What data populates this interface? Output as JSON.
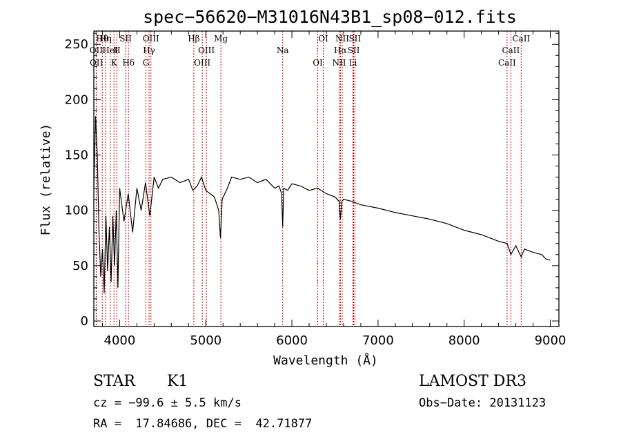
{
  "chart_data": {
    "type": "line",
    "title": "spec−56620−M31016N43B1_sp08−012.fits",
    "xlabel": "Wavelength (Å)",
    "ylabel": "Flux (relative)",
    "xlim": [
      3700,
      9100
    ],
    "ylim": [
      -5,
      262
    ],
    "x_ticks": [
      4000,
      5000,
      6000,
      7000,
      8000,
      9000
    ],
    "y_ticks": [
      0,
      50,
      100,
      150,
      200,
      250
    ],
    "grid": false,
    "series": [
      {
        "name": "spectrum",
        "x": [
          3700,
          3720,
          3740,
          3760,
          3780,
          3800,
          3820,
          3840,
          3860,
          3880,
          3900,
          3920,
          3940,
          3960,
          3980,
          4000,
          4050,
          4100,
          4150,
          4200,
          4250,
          4300,
          4350,
          4400,
          4450,
          4500,
          4600,
          4700,
          4800,
          4850,
          4900,
          4950,
          5000,
          5050,
          5100,
          5150,
          5170,
          5190,
          5250,
          5300,
          5400,
          5500,
          5600,
          5700,
          5800,
          5850,
          5880,
          5893,
          5905,
          5950,
          6000,
          6100,
          6200,
          6300,
          6400,
          6500,
          6550,
          6563,
          6580,
          6600,
          6700,
          6800,
          7000,
          7200,
          7400,
          7600,
          7800,
          8000,
          8200,
          8400,
          8500,
          8542,
          8600,
          8662,
          8700,
          8800,
          8900,
          8950,
          9000
        ],
        "y": [
          120,
          185,
          150,
          80,
          40,
          65,
          25,
          95,
          45,
          85,
          35,
          95,
          50,
          100,
          30,
          120,
          90,
          115,
          80,
          120,
          100,
          125,
          95,
          130,
          120,
          128,
          130,
          125,
          128,
          118,
          122,
          130,
          118,
          115,
          112,
          100,
          75,
          110,
          120,
          130,
          128,
          130,
          125,
          128,
          120,
          122,
          115,
          85,
          120,
          118,
          124,
          122,
          118,
          120,
          115,
          112,
          108,
          92,
          108,
          110,
          108,
          105,
          102,
          98,
          95,
          92,
          88,
          82,
          78,
          72,
          70,
          60,
          68,
          58,
          65,
          62,
          60,
          56,
          55
        ]
      }
    ],
    "spectral_lines": [
      {
        "label": "Hθ",
        "x": 3798
      },
      {
        "label": "OII",
        "x": 3727
      },
      {
        "label": "OII",
        "x": 3729
      },
      {
        "label": "Hη",
        "x": 3835
      },
      {
        "label": "HeI",
        "x": 3889
      },
      {
        "label": "K",
        "x": 3934
      },
      {
        "label": "SII",
        "x": 4069
      },
      {
        "label": "H",
        "x": 3968
      },
      {
        "label": "Hδ",
        "x": 4102
      },
      {
        "label": "OIII",
        "x": 4363
      },
      {
        "label": "Hγ",
        "x": 4341
      },
      {
        "label": "G",
        "x": 4304
      },
      {
        "label": "Hβ",
        "x": 4861
      },
      {
        "label": "OIII",
        "x": 5007
      },
      {
        "label": "OIII",
        "x": 4959
      },
      {
        "label": "Mg",
        "x": 5175
      },
      {
        "label": "Na",
        "x": 5893
      },
      {
        "label": "OI",
        "x": 6300
      },
      {
        "label": "OI",
        "x": 6364
      },
      {
        "label": "Hα",
        "x": 6563
      },
      {
        "label": "NII",
        "x": 6548
      },
      {
        "label": "NII",
        "x": 6584
      },
      {
        "label": "SII",
        "x": 6717
      },
      {
        "label": "Li",
        "x": 6708
      },
      {
        "label": "SII",
        "x": 6731
      },
      {
        "label": "CaII",
        "x": 8542
      },
      {
        "label": "CaII",
        "x": 8498
      },
      {
        "label": "CaII",
        "x": 8662
      }
    ]
  },
  "info": {
    "class": "STAR",
    "subclass": "K1",
    "survey": "LAMOST DR3",
    "cz": "cz = −99.6 ± 5.5 km/s",
    "obs_date": "Obs−Date: 20131123",
    "radec": "RA =  17.84686, DEC =  42.71877"
  },
  "colors": {
    "spectrum": "#000000",
    "line_marker": "#cc0000",
    "axes": "#000000"
  }
}
